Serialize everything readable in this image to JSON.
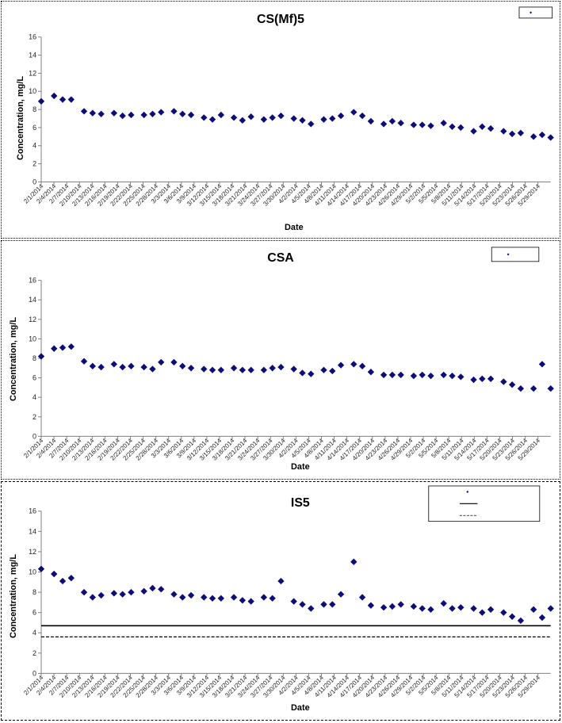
{
  "colors": {
    "marker": "#0d0d7a",
    "axis": "#808080",
    "line": "#000000"
  },
  "chart_data": [
    {
      "type": "scatter",
      "title": "CS(Mf)5",
      "xlabel": "Date",
      "ylabel": "Concentration, mg/L",
      "ylim": [
        0,
        16
      ],
      "yticks": [
        0,
        2,
        4,
        6,
        8,
        10,
        12,
        14,
        16
      ],
      "xlim": [
        "2014-02-01",
        "2014-05-31"
      ],
      "xtick_labels": [
        "2/1/2014",
        "2/4/2014",
        "2/7/2014",
        "2/10/2014",
        "2/13/2014",
        "2/16/2014",
        "2/19/2014",
        "2/22/2014",
        "2/25/2014",
        "2/28/2014",
        "3/3/2014",
        "3/6/2014",
        "3/9/2014",
        "3/12/2014",
        "3/15/2014",
        "3/18/2014",
        "3/21/2014",
        "3/24/2014",
        "3/27/2014",
        "3/30/2014",
        "4/2/2014",
        "4/5/2014",
        "4/8/2014",
        "4/11/2014",
        "4/14/2014",
        "4/17/2014",
        "4/20/2014",
        "4/23/2014",
        "4/26/2014",
        "4/29/2014",
        "5/2/2014",
        "5/5/2014",
        "5/8/2014",
        "5/11/2014",
        "5/14/2014",
        "5/17/2014",
        "5/20/2014",
        "5/23/2014",
        "5/26/2014",
        "5/29/2014"
      ],
      "legend": {
        "position": "top-right",
        "entries": [
          {
            "symbol": "diamond",
            "label": ""
          }
        ]
      },
      "series": [
        {
          "x": [
            "2014-02-01",
            "2014-02-04",
            "2014-02-06",
            "2014-02-08",
            "2014-02-11",
            "2014-02-13",
            "2014-02-15",
            "2014-02-18",
            "2014-02-20",
            "2014-02-22",
            "2014-02-25",
            "2014-02-27",
            "2014-03-01",
            "2014-03-04",
            "2014-03-06",
            "2014-03-08",
            "2014-03-11",
            "2014-03-13",
            "2014-03-15",
            "2014-03-18",
            "2014-03-20",
            "2014-03-22",
            "2014-03-25",
            "2014-03-27",
            "2014-03-29",
            "2014-04-01",
            "2014-04-03",
            "2014-04-05",
            "2014-04-08",
            "2014-04-10",
            "2014-04-12",
            "2014-04-15",
            "2014-04-17",
            "2014-04-19",
            "2014-04-22",
            "2014-04-24",
            "2014-04-26",
            "2014-04-29",
            "2014-05-01",
            "2014-05-03",
            "2014-05-06",
            "2014-05-08",
            "2014-05-10",
            "2014-05-13",
            "2014-05-15",
            "2014-05-17",
            "2014-05-20",
            "2014-05-22",
            "2014-05-24",
            "2014-05-27",
            "2014-05-29",
            "2014-05-31"
          ],
          "y": [
            8.9,
            9.5,
            9.1,
            9.1,
            7.8,
            7.6,
            7.5,
            7.6,
            7.3,
            7.4,
            7.4,
            7.5,
            7.7,
            7.8,
            7.5,
            7.4,
            7.1,
            6.9,
            7.4,
            7.1,
            6.8,
            7.2,
            6.9,
            7.1,
            7.3,
            7.0,
            6.8,
            6.4,
            6.9,
            7.0,
            7.3,
            7.7,
            7.3,
            6.7,
            6.4,
            6.7,
            6.5,
            6.3,
            6.3,
            6.2,
            6.5,
            6.1,
            6.0,
            5.6,
            6.1,
            5.9,
            5.6,
            5.3,
            5.4,
            5.0,
            5.2,
            4.9
          ]
        }
      ]
    },
    {
      "type": "scatter",
      "title": "CSA",
      "xlabel": "Date",
      "ylabel": "Concentration, mg/L",
      "ylim": [
        0,
        16
      ],
      "yticks": [
        0,
        2,
        4,
        6,
        8,
        10,
        12,
        14,
        16
      ],
      "xlim": [
        "2014-02-01",
        "2014-05-31"
      ],
      "xtick_labels": [
        "2/1/2014",
        "2/4/2014",
        "2/7/2014",
        "2/10/2014",
        "2/13/2014",
        "2/16/2014",
        "2/19/2014",
        "2/22/2014",
        "2/25/2014",
        "2/28/2014",
        "3/3/2014",
        "3/6/2014",
        "3/9/2014",
        "3/12/2014",
        "3/15/2014",
        "3/18/2014",
        "3/21/2014",
        "3/24/2014",
        "3/27/2014",
        "3/30/2014",
        "4/2/2014",
        "4/5/2014",
        "4/8/2014",
        "4/11/2014",
        "4/14/2014",
        "4/17/2014",
        "4/20/2014",
        "4/23/2014",
        "4/26/2014",
        "4/29/2014",
        "5/2/2014",
        "5/5/2014",
        "5/8/2014",
        "5/11/2014",
        "5/14/2014",
        "5/17/2014",
        "5/20/2014",
        "5/23/2014",
        "5/26/2014",
        "5/29/2014"
      ],
      "legend": {
        "position": "top-right",
        "entries": [
          {
            "symbol": "diamond",
            "label": ""
          }
        ]
      },
      "series": [
        {
          "x": [
            "2014-02-01",
            "2014-02-04",
            "2014-02-06",
            "2014-02-08",
            "2014-02-11",
            "2014-02-13",
            "2014-02-15",
            "2014-02-18",
            "2014-02-20",
            "2014-02-22",
            "2014-02-25",
            "2014-02-27",
            "2014-03-01",
            "2014-03-04",
            "2014-03-06",
            "2014-03-08",
            "2014-03-11",
            "2014-03-13",
            "2014-03-15",
            "2014-03-18",
            "2014-03-20",
            "2014-03-22",
            "2014-03-25",
            "2014-03-27",
            "2014-03-29",
            "2014-04-01",
            "2014-04-03",
            "2014-04-05",
            "2014-04-08",
            "2014-04-10",
            "2014-04-12",
            "2014-04-15",
            "2014-04-17",
            "2014-04-19",
            "2014-04-22",
            "2014-04-24",
            "2014-04-26",
            "2014-04-29",
            "2014-05-01",
            "2014-05-03",
            "2014-05-06",
            "2014-05-08",
            "2014-05-10",
            "2014-05-13",
            "2014-05-15",
            "2014-05-17",
            "2014-05-20",
            "2014-05-22",
            "2014-05-24",
            "2014-05-27",
            "2014-05-29",
            "2014-05-31"
          ],
          "y": [
            8.2,
            9.0,
            9.1,
            9.2,
            7.7,
            7.2,
            7.1,
            7.4,
            7.1,
            7.2,
            7.1,
            6.9,
            7.6,
            7.6,
            7.2,
            7.0,
            6.9,
            6.8,
            6.8,
            7.0,
            6.8,
            6.8,
            6.8,
            7.0,
            7.1,
            6.9,
            6.5,
            6.4,
            6.8,
            6.7,
            7.3,
            7.4,
            7.2,
            6.6,
            6.3,
            6.3,
            6.3,
            6.2,
            6.3,
            6.2,
            6.3,
            6.2,
            6.1,
            5.8,
            5.9,
            5.9,
            5.6,
            5.3,
            4.9,
            4.9,
            7.4,
            4.9
          ]
        }
      ]
    },
    {
      "type": "scatter",
      "title": "IS5",
      "xlabel": "Date",
      "ylabel": "Concentration, mg/L",
      "ylim": [
        0,
        16
      ],
      "yticks": [
        0,
        2,
        4,
        6,
        8,
        10,
        12,
        14,
        16
      ],
      "xlim": [
        "2014-02-01",
        "2014-05-31"
      ],
      "xtick_labels": [
        "2/1/2014",
        "2/4/2014",
        "2/7/2014",
        "2/10/2014",
        "2/13/2014",
        "2/16/2014",
        "2/19/2014",
        "2/22/2014",
        "2/25/2014",
        "2/28/2014",
        "3/3/2014",
        "3/6/2014",
        "3/9/2014",
        "3/12/2014",
        "3/15/2014",
        "3/18/2014",
        "3/21/2014",
        "3/24/2014",
        "3/27/2014",
        "3/30/2014",
        "4/2/2014",
        "4/5/2014",
        "4/8/2014",
        "4/11/2014",
        "4/14/2014",
        "4/17/2014",
        "4/20/2014",
        "4/23/2014",
        "4/26/2014",
        "4/29/2014",
        "5/2/2014",
        "5/5/2014",
        "5/8/2014",
        "5/11/2014",
        "5/14/2014",
        "5/17/2014",
        "5/20/2014",
        "5/23/2014",
        "5/26/2014",
        "5/29/2014"
      ],
      "legend": {
        "position": "top-right",
        "entries": [
          {
            "symbol": "diamond",
            "label": ""
          },
          {
            "symbol": "solid-line",
            "label": ""
          },
          {
            "symbol": "dashed-line",
            "label": ""
          }
        ]
      },
      "reference_lines": [
        {
          "style": "solid",
          "y": 4.7
        },
        {
          "style": "dashed",
          "y": 3.6
        }
      ],
      "series": [
        {
          "x": [
            "2014-02-01",
            "2014-02-04",
            "2014-02-06",
            "2014-02-08",
            "2014-02-11",
            "2014-02-13",
            "2014-02-15",
            "2014-02-18",
            "2014-02-20",
            "2014-02-22",
            "2014-02-25",
            "2014-02-27",
            "2014-03-01",
            "2014-03-04",
            "2014-03-06",
            "2014-03-08",
            "2014-03-11",
            "2014-03-13",
            "2014-03-15",
            "2014-03-18",
            "2014-03-20",
            "2014-03-22",
            "2014-03-25",
            "2014-03-27",
            "2014-03-29",
            "2014-04-01",
            "2014-04-03",
            "2014-04-05",
            "2014-04-08",
            "2014-04-10",
            "2014-04-12",
            "2014-04-15",
            "2014-04-17",
            "2014-04-19",
            "2014-04-22",
            "2014-04-24",
            "2014-04-26",
            "2014-04-29",
            "2014-05-01",
            "2014-05-03",
            "2014-05-06",
            "2014-05-08",
            "2014-05-10",
            "2014-05-13",
            "2014-05-15",
            "2014-05-17",
            "2014-05-20",
            "2014-05-22",
            "2014-05-24",
            "2014-05-27",
            "2014-05-29",
            "2014-05-31"
          ],
          "y": [
            10.3,
            9.8,
            9.1,
            9.4,
            8.0,
            7.5,
            7.7,
            7.9,
            7.8,
            8.0,
            8.1,
            8.4,
            8.3,
            7.8,
            7.5,
            7.7,
            7.5,
            7.4,
            7.4,
            7.5,
            7.2,
            7.1,
            7.5,
            7.4,
            9.1,
            7.1,
            6.8,
            6.4,
            6.8,
            6.8,
            7.8,
            11.0,
            7.5,
            6.7,
            6.5,
            6.6,
            6.8,
            6.6,
            6.4,
            6.3,
            6.9,
            6.4,
            6.5,
            6.4,
            6.0,
            6.3,
            6.0,
            5.6,
            5.2,
            6.3,
            5.5,
            6.4
          ]
        }
      ]
    }
  ]
}
